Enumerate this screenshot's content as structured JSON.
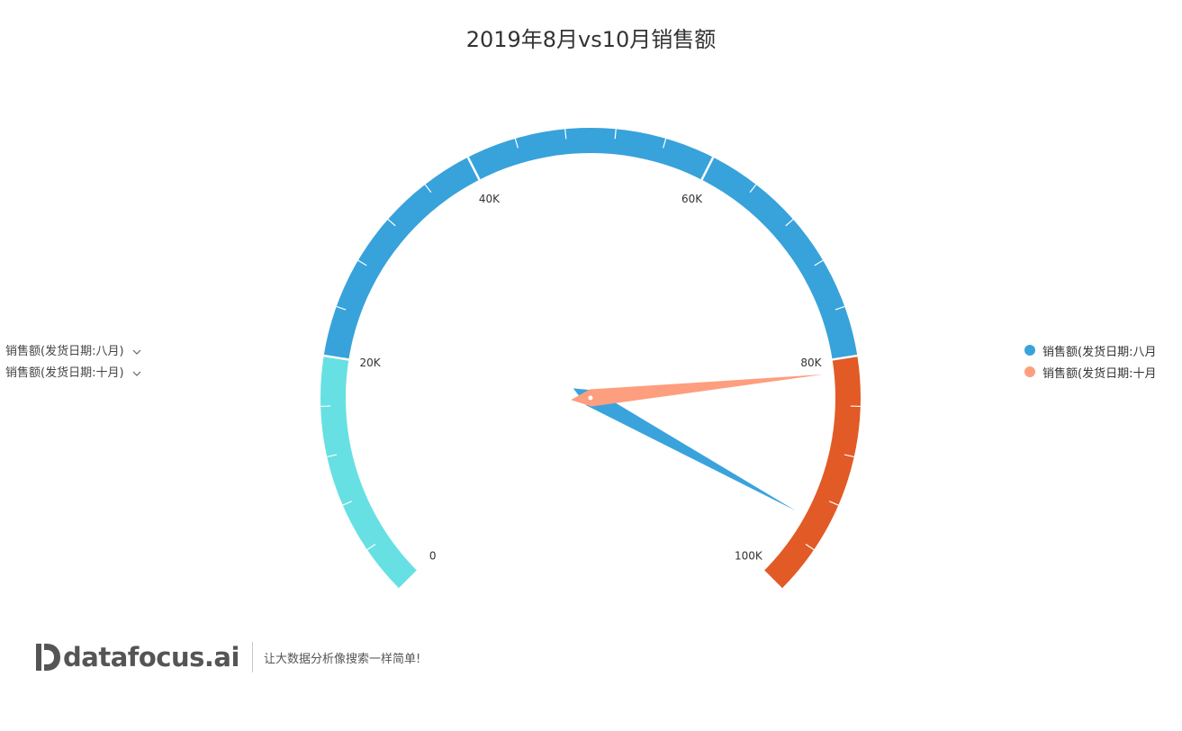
{
  "title": "2019年8月vs10月销售额",
  "filters": [
    {
      "label": "销售额(发货日期:八月)"
    },
    {
      "label": "销售额(发货日期:十月)"
    }
  ],
  "legend": [
    {
      "label": "销售额(发货日期:八月",
      "color": "#3ba3dc"
    },
    {
      "label": "销售额(发货日期:十月",
      "color": "#fd9e7f"
    }
  ],
  "chart_data": {
    "type": "gauge",
    "min": 0,
    "max": 100000,
    "axis_labels": [
      "0",
      "20K",
      "40K",
      "60K",
      "80K",
      "100K"
    ],
    "bands": [
      {
        "from": 0,
        "to": 20000,
        "color": "#67e0e3"
      },
      {
        "from": 20000,
        "to": 80000,
        "color": "#38a2db"
      },
      {
        "from": 80000,
        "to": 100000,
        "color": "#e25a26"
      }
    ],
    "series": [
      {
        "name": "销售额(发货日期:八月",
        "value": 94000,
        "color": "#3ba3dc"
      },
      {
        "name": "销售额(发货日期:十月",
        "value": 81200,
        "color": "#fd9e7f"
      }
    ]
  },
  "brand": {
    "name": "datafocus.ai",
    "slogan": "让大数据分析像搜索一样简单!"
  }
}
